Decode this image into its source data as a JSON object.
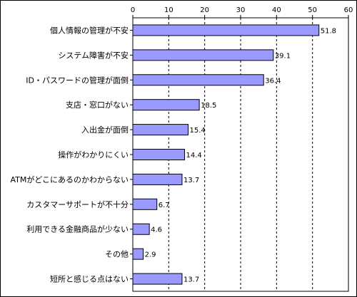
{
  "chart_data": {
    "type": "bar",
    "orientation": "horizontal",
    "categories": [
      "個人情報の管理が不安",
      "システム障害が不安",
      "ID・パスワードの管理が面倒",
      "支店・窓口がない",
      "入出金が面倒",
      "操作がわかりにくい",
      "ATMがどこにあるのかわからない",
      "カスタマーサポートが不十分",
      "利用できる金融商品が少ない",
      "その他",
      "短所と感じる点はない"
    ],
    "values": [
      51.8,
      39.1,
      36.4,
      18.5,
      15.4,
      14.4,
      13.7,
      6.7,
      4.6,
      2.9,
      13.7
    ],
    "value_labels": [
      "51.8",
      "39.1",
      "36.4",
      "18.5",
      "15.4",
      "14.4",
      "13.7",
      "6.7",
      "4.6",
      "2.9",
      "13.7"
    ],
    "xlim": [
      0,
      60
    ],
    "xticks": [
      0,
      10,
      20,
      30,
      40,
      50,
      60
    ],
    "tick_labels": [
      "0",
      "10",
      "20",
      "30",
      "40",
      "50",
      "60"
    ],
    "axis_position": "top",
    "grid": "vertical dashed",
    "bar_color": "#9999ff",
    "bar_edge_color": "#000000",
    "title": "",
    "xlabel": "",
    "ylabel": ""
  }
}
